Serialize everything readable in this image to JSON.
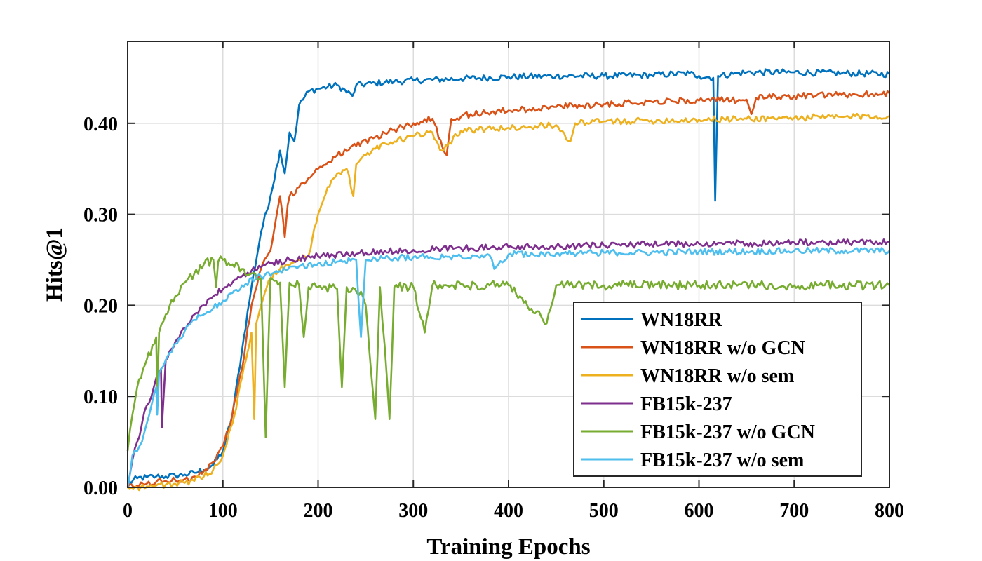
{
  "chart_data": {
    "type": "line",
    "title": "",
    "xlabel": "Training Epochs",
    "ylabel": "Hits@1",
    "xlim": [
      0,
      800
    ],
    "ylim": [
      0,
      0.49
    ],
    "xticks": [
      0,
      100,
      200,
      300,
      400,
      500,
      600,
      700,
      800
    ],
    "xtick_labels": [
      "0",
      "100",
      "200",
      "300",
      "400",
      "500",
      "600",
      "700",
      "800"
    ],
    "yticks": [
      0.0,
      0.1,
      0.2,
      0.3,
      0.4
    ],
    "ytick_labels": [
      "0.00",
      "0.10",
      "0.20",
      "0.30",
      "0.40"
    ],
    "grid": true,
    "legend_position": "lower-right",
    "series": [
      {
        "name": "WN18RR",
        "color": "#0072BD",
        "x": [
          0,
          10,
          20,
          30,
          40,
          50,
          60,
          70,
          80,
          90,
          100,
          110,
          120,
          130,
          140,
          150,
          160,
          165,
          170,
          175,
          180,
          190,
          200,
          220,
          236,
          240,
          260,
          280,
          300,
          350,
          400,
          450,
          500,
          550,
          590,
          600,
          615,
          617,
          620,
          640,
          650,
          700,
          750,
          800
        ],
        "values": [
          0.004,
          0.01,
          0.011,
          0.012,
          0.012,
          0.013,
          0.014,
          0.016,
          0.019,
          0.025,
          0.04,
          0.08,
          0.15,
          0.22,
          0.28,
          0.32,
          0.37,
          0.345,
          0.39,
          0.38,
          0.42,
          0.435,
          0.438,
          0.442,
          0.43,
          0.442,
          0.444,
          0.446,
          0.447,
          0.449,
          0.451,
          0.452,
          0.452,
          0.453,
          0.455,
          0.452,
          0.45,
          0.315,
          0.452,
          0.455,
          0.456,
          0.456,
          0.455,
          0.454
        ]
      },
      {
        "name": "WN18RR w/o GCN",
        "color": "#D95319",
        "x": [
          0,
          10,
          20,
          30,
          40,
          50,
          60,
          70,
          80,
          90,
          100,
          110,
          120,
          130,
          140,
          150,
          160,
          165,
          168,
          170,
          180,
          190,
          200,
          220,
          240,
          260,
          280,
          300,
          320,
          335,
          340,
          360,
          400,
          450,
          500,
          550,
          600,
          650,
          655,
          660,
          700,
          750,
          800
        ],
        "values": [
          0.0,
          0.002,
          0.004,
          0.006,
          0.007,
          0.008,
          0.009,
          0.012,
          0.018,
          0.028,
          0.045,
          0.08,
          0.13,
          0.2,
          0.24,
          0.26,
          0.32,
          0.275,
          0.31,
          0.32,
          0.33,
          0.34,
          0.35,
          0.365,
          0.375,
          0.385,
          0.393,
          0.4,
          0.405,
          0.365,
          0.405,
          0.41,
          0.414,
          0.418,
          0.421,
          0.424,
          0.425,
          0.426,
          0.41,
          0.428,
          0.43,
          0.431,
          0.433
        ]
      },
      {
        "name": "WN18RR w/o sem",
        "color": "#EDB120",
        "x": [
          0,
          10,
          20,
          30,
          40,
          50,
          60,
          70,
          80,
          90,
          100,
          110,
          120,
          130,
          133,
          135,
          140,
          150,
          160,
          180,
          190,
          200,
          210,
          220,
          230,
          237,
          240,
          250,
          260,
          280,
          300,
          320,
          330,
          350,
          400,
          450,
          465,
          470,
          500,
          550,
          600,
          650,
          700,
          750,
          800
        ],
        "values": [
          0.0,
          0.0,
          0.001,
          0.002,
          0.003,
          0.004,
          0.005,
          0.007,
          0.012,
          0.02,
          0.035,
          0.07,
          0.12,
          0.17,
          0.075,
          0.18,
          0.2,
          0.23,
          0.24,
          0.25,
          0.255,
          0.3,
          0.33,
          0.345,
          0.35,
          0.32,
          0.355,
          0.365,
          0.372,
          0.38,
          0.386,
          0.39,
          0.37,
          0.392,
          0.395,
          0.398,
          0.38,
          0.4,
          0.402,
          0.403,
          0.404,
          0.405,
          0.406,
          0.407,
          0.408
        ]
      },
      {
        "name": "FB15k-237",
        "color": "#7E2F8E",
        "x": [
          0,
          5,
          10,
          15,
          20,
          25,
          30,
          35,
          36,
          40,
          50,
          60,
          70,
          80,
          90,
          100,
          110,
          120,
          130,
          140,
          150,
          170,
          200,
          250,
          300,
          350,
          400,
          450,
          500,
          550,
          600,
          650,
          700,
          750,
          800
        ],
        "values": [
          0.0,
          0.03,
          0.05,
          0.07,
          0.09,
          0.1,
          0.12,
          0.13,
          0.066,
          0.14,
          0.16,
          0.175,
          0.19,
          0.2,
          0.21,
          0.218,
          0.225,
          0.232,
          0.238,
          0.242,
          0.246,
          0.25,
          0.254,
          0.258,
          0.261,
          0.263,
          0.264,
          0.265,
          0.266,
          0.267,
          0.268,
          0.268,
          0.269,
          0.269,
          0.27
        ]
      },
      {
        "name": "FB15k-237 w/o GCN",
        "color": "#77AC30",
        "x": [
          0,
          5,
          10,
          20,
          30,
          31,
          33,
          40,
          50,
          60,
          70,
          80,
          90,
          93,
          95,
          100,
          110,
          120,
          130,
          140,
          145,
          150,
          160,
          165,
          170,
          180,
          185,
          190,
          200,
          220,
          225,
          230,
          245,
          250,
          260,
          265,
          270,
          275,
          280,
          300,
          312,
          320,
          380,
          400,
          440,
          450,
          500,
          600,
          700,
          800
        ],
        "values": [
          0.04,
          0.08,
          0.11,
          0.14,
          0.165,
          0.1,
          0.17,
          0.19,
          0.21,
          0.225,
          0.235,
          0.245,
          0.25,
          0.22,
          0.248,
          0.25,
          0.245,
          0.24,
          0.235,
          0.23,
          0.055,
          0.23,
          0.225,
          0.11,
          0.225,
          0.222,
          0.165,
          0.22,
          0.22,
          0.218,
          0.11,
          0.22,
          0.215,
          0.2,
          0.075,
          0.22,
          0.155,
          0.075,
          0.22,
          0.22,
          0.17,
          0.222,
          0.222,
          0.222,
          0.18,
          0.222,
          0.222,
          0.222,
          0.222,
          0.222
        ]
      },
      {
        "name": "FB15k-237 w/o sem",
        "color": "#4DBEEE",
        "x": [
          0,
          5,
          10,
          15,
          20,
          25,
          30,
          31,
          33,
          35,
          40,
          50,
          60,
          70,
          80,
          90,
          100,
          120,
          140,
          160,
          180,
          200,
          220,
          240,
          245,
          250,
          280,
          300,
          350,
          380,
          385,
          400,
          450,
          500,
          550,
          600,
          650,
          700,
          750,
          800
        ],
        "values": [
          0.0,
          0.035,
          0.04,
          0.05,
          0.07,
          0.09,
          0.11,
          0.08,
          0.125,
          0.13,
          0.14,
          0.158,
          0.172,
          0.184,
          0.19,
          0.197,
          0.205,
          0.222,
          0.232,
          0.238,
          0.243,
          0.246,
          0.248,
          0.25,
          0.165,
          0.25,
          0.252,
          0.253,
          0.254,
          0.255,
          0.24,
          0.256,
          0.257,
          0.258,
          0.258,
          0.259,
          0.259,
          0.26,
          0.26,
          0.26
        ]
      }
    ]
  }
}
